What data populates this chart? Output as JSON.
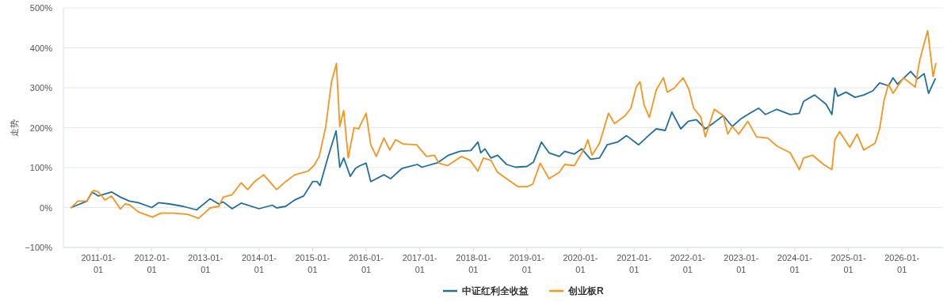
{
  "chart_data": {
    "type": "line",
    "ylabel": "走势",
    "xlim": [
      "2010-05-08",
      "2026-10-08"
    ],
    "ylim": [
      -100,
      500
    ],
    "yticks": [
      {
        "value": -100,
        "label": "−100%"
      },
      {
        "value": 0,
        "label": "0%"
      },
      {
        "value": 100,
        "label": "100%"
      },
      {
        "value": 200,
        "label": "200%"
      },
      {
        "value": 300,
        "label": "300%"
      },
      {
        "value": 400,
        "label": "400%"
      },
      {
        "value": 500,
        "label": "500%"
      }
    ],
    "xticks": [
      {
        "value": "2011-01-01",
        "label": "2011-01-01"
      },
      {
        "value": "2012-01-01",
        "label": "2012-01-01"
      },
      {
        "value": "2013-01-01",
        "label": "2013-01-01"
      },
      {
        "value": "2014-01-01",
        "label": "2014-01-01"
      },
      {
        "value": "2015-01-01",
        "label": "2015-01-01"
      },
      {
        "value": "2016-01-01",
        "label": "2016-01-01"
      },
      {
        "value": "2017-01-01",
        "label": "2017-01-01"
      },
      {
        "value": "2018-01-01",
        "label": "2018-01-01"
      },
      {
        "value": "2019-01-01",
        "label": "2019-01-01"
      },
      {
        "value": "2020-01-01",
        "label": "2020-01-01"
      },
      {
        "value": "2021-01-01",
        "label": "2021-01-01"
      },
      {
        "value": "2022-01-01",
        "label": "2022-01-01"
      },
      {
        "value": "2023-01-01",
        "label": "2023-01-01"
      },
      {
        "value": "2024-01-01",
        "label": "2024-01-01"
      },
      {
        "value": "2025-01-01",
        "label": "2025-01-01"
      },
      {
        "value": "2026-01-01",
        "label": "2026-01-01"
      }
    ],
    "grid": "y",
    "legend": "bottom",
    "marker": "none",
    "line_style": "solid",
    "series": [
      {
        "name": "中证红利全收益",
        "color": "#1f6e9c",
        "x": [
          "2010-07-01",
          "2010-10-15",
          "2010-11-20",
          "2011-01-01",
          "2011-04-01",
          "2011-06-01",
          "2011-08-01",
          "2011-10-01",
          "2012-01-01",
          "2012-02-15",
          "2012-05-01",
          "2012-08-01",
          "2012-11-01",
          "2013-02-01",
          "2013-04-01",
          "2013-05-01",
          "2013-07-01",
          "2013-09-01",
          "2014-01-01",
          "2014-04-01",
          "2014-05-01",
          "2014-07-01",
          "2014-09-01",
          "2014-11-01",
          "2015-01-01",
          "2015-02-01",
          "2015-02-20",
          "2015-03-15",
          "2015-04-20",
          "2015-06-10",
          "2015-07-05",
          "2015-08-01",
          "2015-08-20",
          "2015-09-15",
          "2015-10-20",
          "2015-11-20",
          "2016-01-01",
          "2016-02-01",
          "2016-05-01",
          "2016-06-15",
          "2016-09-01",
          "2016-12-15",
          "2017-01-15",
          "2017-05-01",
          "2017-07-15",
          "2017-10-01",
          "2017-12-15",
          "2018-02-01",
          "2018-02-20",
          "2018-03-20",
          "2018-05-01",
          "2018-06-15",
          "2018-08-15",
          "2018-10-15",
          "2019-01-01",
          "2019-02-15",
          "2019-04-10",
          "2019-06-01",
          "2019-08-10",
          "2019-09-15",
          "2019-11-20",
          "2020-01-10",
          "2020-03-10",
          "2020-05-10",
          "2020-07-01",
          "2020-09-10",
          "2020-11-10",
          "2021-02-01",
          "2021-04-20",
          "2021-06-01",
          "2021-08-01",
          "2021-09-15",
          "2021-11-15",
          "2022-01-05",
          "2022-03-01",
          "2022-05-01",
          "2022-07-01",
          "2022-09-01",
          "2022-11-01",
          "2023-01-01",
          "2023-03-01",
          "2023-05-01",
          "2023-06-15",
          "2023-09-01",
          "2023-12-01",
          "2024-02-01",
          "2024-03-01",
          "2024-05-15",
          "2024-08-01",
          "2024-09-10",
          "2024-10-01",
          "2024-10-20",
          "2024-12-15",
          "2025-02-15",
          "2025-04-15",
          "2025-06-15",
          "2025-08-01",
          "2025-10-01",
          "2025-11-01",
          "2025-12-01",
          "2026-03-01",
          "2026-04-15",
          "2026-06-01",
          "2026-07-01",
          "2026-08-15"
        ],
        "values": [
          0,
          16,
          39,
          29,
          39,
          26,
          16,
          12,
          0,
          12,
          9,
          3,
          -6,
          22,
          9,
          14,
          -3,
          11,
          -3,
          6,
          -1,
          3,
          19,
          29,
          65,
          65,
          55,
          85,
          131,
          192,
          101,
          124,
          105,
          78,
          98,
          105,
          111,
          65,
          82,
          72,
          98,
          108,
          101,
          112,
          131,
          141,
          143,
          164,
          137,
          147,
          124,
          131,
          108,
          101,
          103,
          114,
          164,
          137,
          128,
          141,
          134,
          147,
          121,
          124,
          157,
          164,
          180,
          157,
          184,
          197,
          193,
          239,
          197,
          216,
          220,
          197,
          213,
          230,
          203,
          223,
          236,
          249,
          233,
          246,
          233,
          236,
          266,
          282,
          259,
          233,
          299,
          279,
          289,
          276,
          282,
          292,
          312,
          305,
          325,
          309,
          341,
          322,
          335,
          286,
          322
        ]
      },
      {
        "name": "创业板R",
        "color": "#f7941d",
        "x": [
          "2010-07-01",
          "2010-08-15",
          "2010-10-15",
          "2010-12-01",
          "2011-01-01",
          "2011-02-15",
          "2011-04-01",
          "2011-06-01",
          "2011-07-01",
          "2011-08-01",
          "2011-10-01",
          "2012-01-05",
          "2012-03-01",
          "2012-06-01",
          "2012-09-01",
          "2012-11-15",
          "2013-02-01",
          "2013-04-01",
          "2013-05-01",
          "2013-07-01",
          "2013-09-01",
          "2013-10-15",
          "2013-12-01",
          "2014-02-01",
          "2014-05-01",
          "2014-07-01",
          "2014-09-01",
          "2014-12-01",
          "2015-01-10",
          "2015-02-15",
          "2015-04-01",
          "2015-05-10",
          "2015-06-12",
          "2015-07-05",
          "2015-08-01",
          "2015-09-01",
          "2015-10-10",
          "2015-11-10",
          "2016-01-01",
          "2016-02-01",
          "2016-03-10",
          "2016-05-01",
          "2016-06-10",
          "2016-07-20",
          "2016-09-10",
          "2016-12-10",
          "2017-02-15",
          "2017-04-10",
          "2017-05-10",
          "2017-07-10",
          "2017-10-10",
          "2017-12-10",
          "2018-02-01",
          "2018-03-10",
          "2018-05-01",
          "2018-06-15",
          "2018-08-15",
          "2018-11-01",
          "2019-01-01",
          "2019-02-10",
          "2019-04-01",
          "2019-06-01",
          "2019-08-10",
          "2019-09-15",
          "2019-11-20",
          "2020-02-01",
          "2020-02-20",
          "2020-03-20",
          "2020-05-10",
          "2020-07-10",
          "2020-08-20",
          "2020-11-01",
          "2020-12-10",
          "2021-01-15",
          "2021-02-10",
          "2021-03-10",
          "2021-04-15",
          "2021-06-01",
          "2021-07-20",
          "2021-08-15",
          "2021-10-01",
          "2021-12-01",
          "2022-01-10",
          "2022-02-10",
          "2022-04-01",
          "2022-05-01",
          "2022-07-01",
          "2022-09-01",
          "2022-10-01",
          "2022-11-01",
          "2022-12-15",
          "2023-02-15",
          "2023-04-15",
          "2023-07-01",
          "2023-09-01",
          "2023-12-01",
          "2024-02-01",
          "2024-03-01",
          "2024-05-01",
          "2024-07-15",
          "2024-09-10",
          "2024-10-01",
          "2024-11-01",
          "2025-01-10",
          "2025-03-01",
          "2025-04-15",
          "2025-07-01",
          "2025-08-01",
          "2025-09-01",
          "2025-10-01",
          "2025-11-01",
          "2026-01-10",
          "2026-04-01",
          "2026-05-01",
          "2026-06-01",
          "2026-06-25",
          "2026-08-01",
          "2026-08-20"
        ],
        "values": [
          0,
          16,
          16,
          43,
          39,
          19,
          29,
          -4,
          9,
          7,
          -11,
          -24,
          -14,
          -14,
          -17,
          -27,
          -1,
          3,
          26,
          32,
          62,
          45,
          65,
          82,
          45,
          65,
          82,
          91,
          105,
          128,
          203,
          315,
          361,
          203,
          243,
          124,
          200,
          197,
          236,
          157,
          128,
          174,
          144,
          170,
          159,
          157,
          128,
          131,
          111,
          105,
          128,
          118,
          91,
          124,
          118,
          88,
          72,
          52,
          52,
          59,
          111,
          72,
          88,
          108,
          105,
          151,
          170,
          131,
          161,
          236,
          210,
          230,
          249,
          302,
          315,
          256,
          226,
          295,
          325,
          289,
          299,
          325,
          295,
          249,
          226,
          177,
          246,
          230,
          184,
          203,
          184,
          216,
          177,
          174,
          154,
          137,
          95,
          124,
          131,
          108,
          95,
          170,
          190,
          151,
          184,
          144,
          161,
          197,
          269,
          309,
          286,
          325,
          302,
          368,
          411,
          443,
          328,
          361
        ]
      }
    ]
  }
}
